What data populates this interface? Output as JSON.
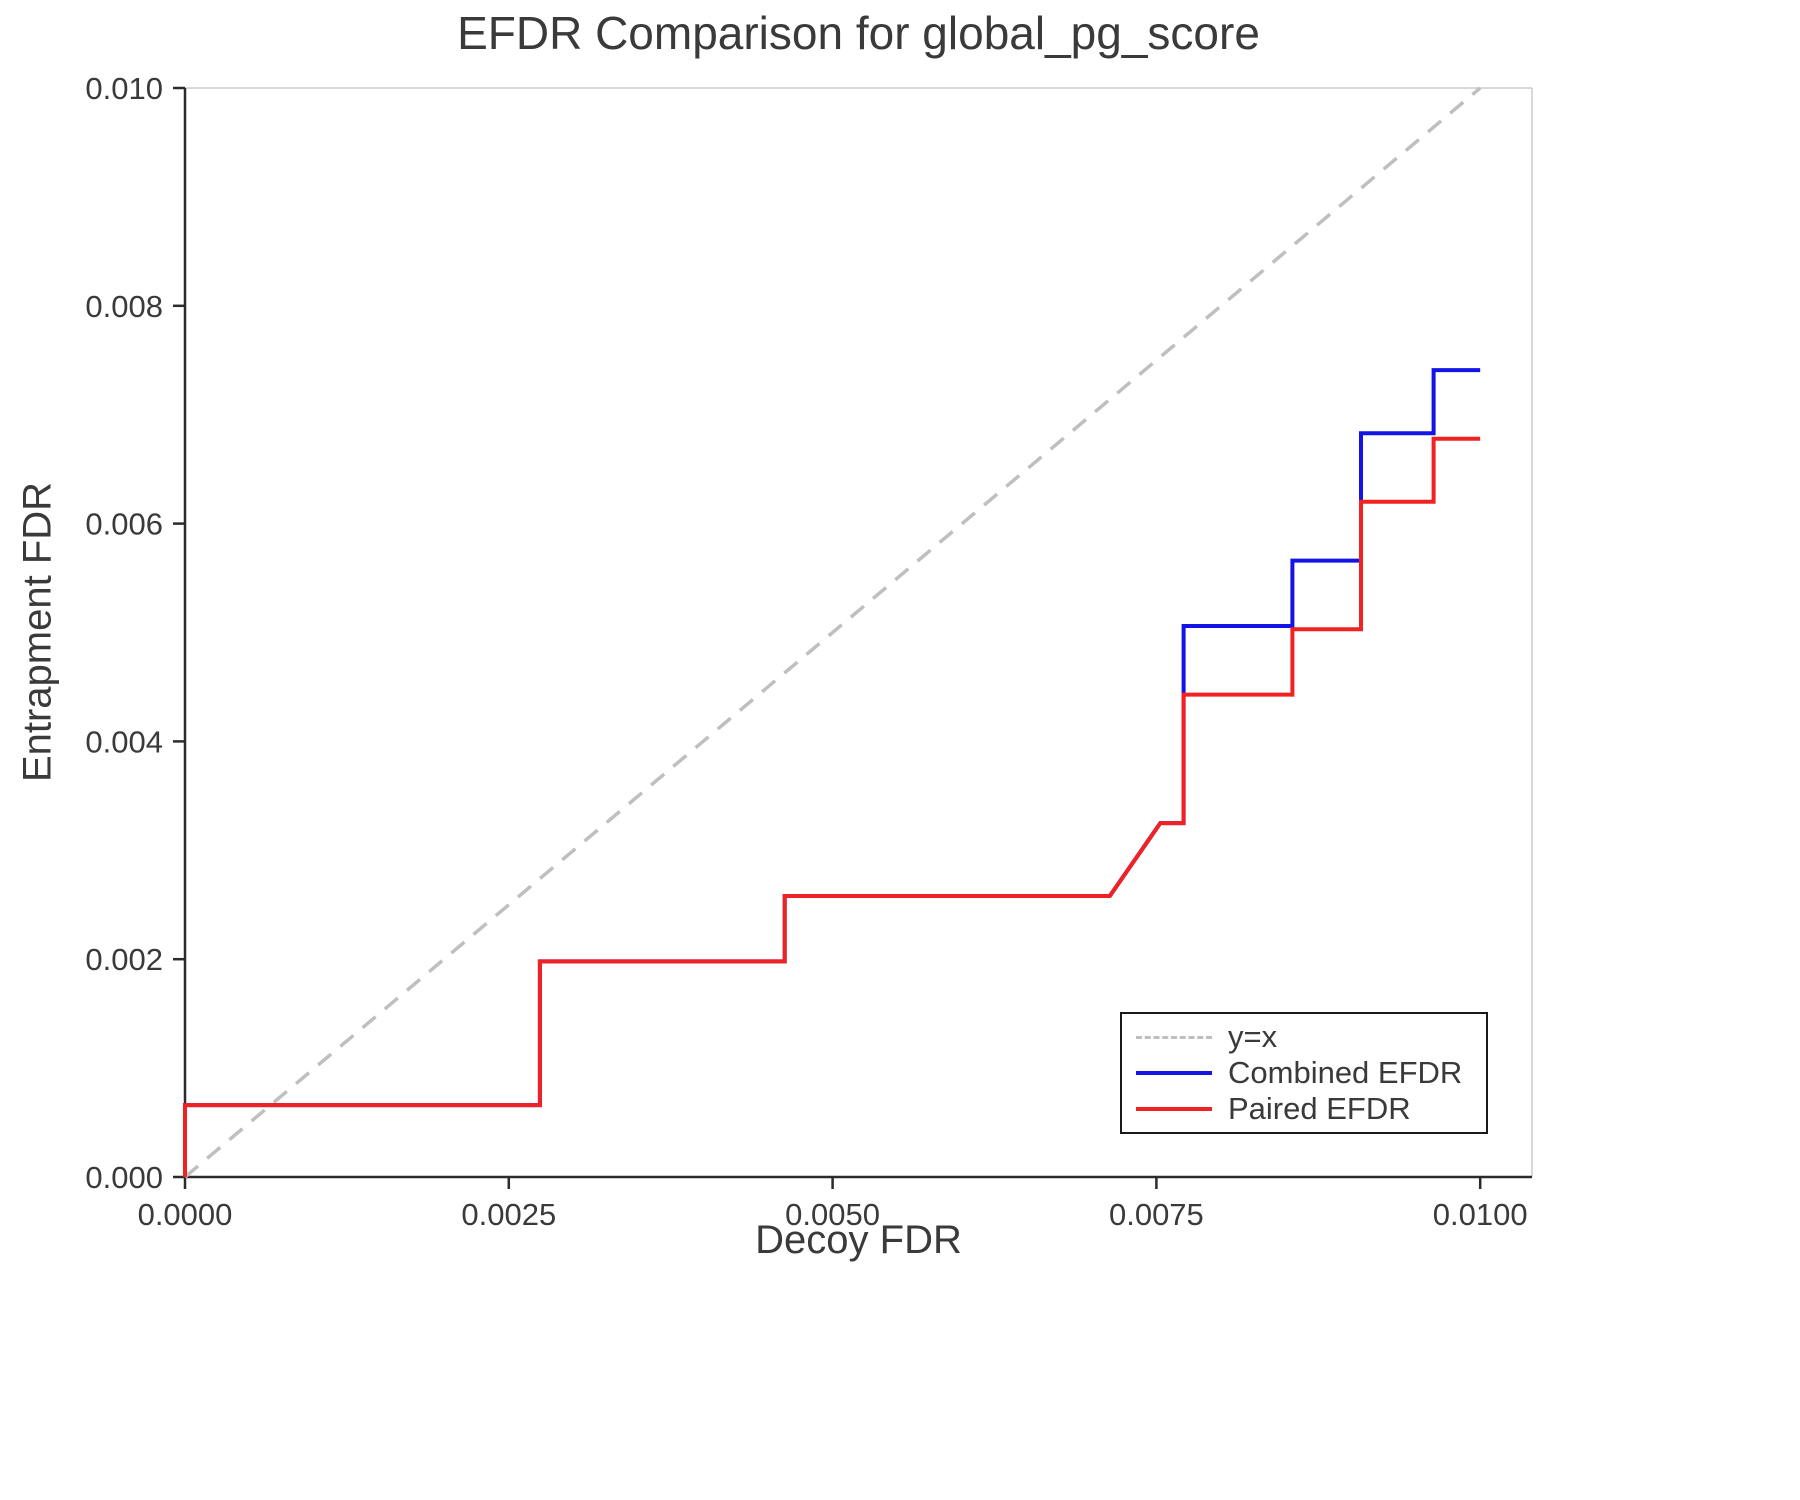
{
  "chart_data": {
    "type": "line",
    "title": "EFDR Comparison for global_pg_score",
    "xlabel": "Decoy FDR",
    "ylabel": "Entrapment FDR",
    "xlim": [
      0.0,
      0.0104
    ],
    "ylim": [
      0.0,
      0.01
    ],
    "grid": false,
    "legend_position": "lower right",
    "x_ticks": [
      {
        "value": 0.0,
        "label": "0.0000"
      },
      {
        "value": 0.0025,
        "label": "0.0025"
      },
      {
        "value": 0.005,
        "label": "0.0050"
      },
      {
        "value": 0.0075,
        "label": "0.0075"
      },
      {
        "value": 0.01,
        "label": "0.0100"
      }
    ],
    "y_ticks": [
      {
        "value": 0.0,
        "label": "0.000"
      },
      {
        "value": 0.002,
        "label": "0.002"
      },
      {
        "value": 0.004,
        "label": "0.004"
      },
      {
        "value": 0.006,
        "label": "0.006"
      },
      {
        "value": 0.008,
        "label": "0.008"
      },
      {
        "value": 0.01,
        "label": "0.010"
      }
    ],
    "series": [
      {
        "name": "y=x",
        "color": "#bfbfbf",
        "style": "dashed",
        "width": 3.5,
        "points": [
          [
            0.0,
            0.0
          ],
          [
            0.01,
            0.01
          ]
        ]
      },
      {
        "name": "Combined EFDR",
        "color": "#1414e6",
        "style": "solid",
        "width": 4,
        "points": [
          [
            0.0,
            0.0
          ],
          [
            0.0,
            0.00066
          ],
          [
            0.00274,
            0.00066
          ],
          [
            0.00274,
            0.00198
          ],
          [
            0.00463,
            0.00198
          ],
          [
            0.00463,
            0.00258
          ],
          [
            0.00714,
            0.00258
          ],
          [
            0.00753,
            0.00325
          ],
          [
            0.00771,
            0.00325
          ],
          [
            0.00771,
            0.00506
          ],
          [
            0.00855,
            0.00506
          ],
          [
            0.00855,
            0.00566
          ],
          [
            0.00908,
            0.00566
          ],
          [
            0.00908,
            0.00683
          ],
          [
            0.00964,
            0.00683
          ],
          [
            0.00964,
            0.00741
          ],
          [
            0.01,
            0.00741
          ]
        ]
      },
      {
        "name": "Paired EFDR",
        "color": "#f02222",
        "style": "solid",
        "width": 4,
        "points": [
          [
            0.0,
            0.0
          ],
          [
            0.0,
            0.00066
          ],
          [
            0.00274,
            0.00066
          ],
          [
            0.00274,
            0.00198
          ],
          [
            0.00463,
            0.00198
          ],
          [
            0.00463,
            0.00258
          ],
          [
            0.00714,
            0.00258
          ],
          [
            0.00753,
            0.00325
          ],
          [
            0.00771,
            0.00325
          ],
          [
            0.00771,
            0.00443
          ],
          [
            0.00855,
            0.00443
          ],
          [
            0.00855,
            0.00503
          ],
          [
            0.00908,
            0.00503
          ],
          [
            0.00908,
            0.0062
          ],
          [
            0.00964,
            0.0062
          ],
          [
            0.00964,
            0.00678
          ],
          [
            0.01,
            0.00678
          ]
        ]
      }
    ]
  }
}
